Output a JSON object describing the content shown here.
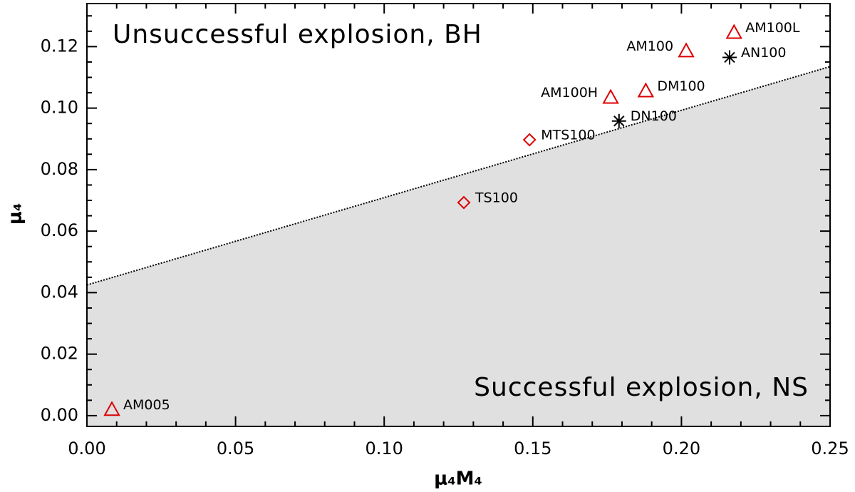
{
  "chart_data": {
    "type": "scatter",
    "xlabel": "μ₄M₄",
    "ylabel": "μ₄",
    "annotations": [
      "Unsuccessful explosion, BH",
      "Successful explosion, NS"
    ],
    "xlim": [
      0,
      0.25
    ],
    "ylim": [
      -0.0035,
      0.134
    ],
    "xticks": [
      {
        "value": 0,
        "label": "0.00"
      },
      {
        "value": 0.05,
        "label": "0.05"
      },
      {
        "value": 0.1,
        "label": "0.10"
      },
      {
        "value": 0.15,
        "label": "0.15"
      },
      {
        "value": 0.2,
        "label": "0.20"
      },
      {
        "value": 0.25,
        "label": "0.25"
      }
    ],
    "yticks": [
      {
        "value": 0,
        "label": "0.00"
      },
      {
        "value": 0.02,
        "label": "0.02"
      },
      {
        "value": 0.04,
        "label": "0.04"
      },
      {
        "value": 0.06,
        "label": "0.06"
      },
      {
        "value": 0.08,
        "label": "0.08"
      },
      {
        "value": 0.1,
        "label": "0.10"
      },
      {
        "value": 0.12,
        "label": "0.12"
      }
    ],
    "minor_xticks": [
      0.01,
      0.02,
      0.03,
      0.04,
      0.06,
      0.07,
      0.08,
      0.09,
      0.11,
      0.12,
      0.13,
      0.14,
      0.16,
      0.17,
      0.18,
      0.19,
      0.21,
      0.22,
      0.23,
      0.24
    ],
    "minor_yticks": [
      0.005,
      0.01,
      0.015,
      0.025,
      0.03,
      0.035,
      0.045,
      0.05,
      0.055,
      0.065,
      0.07,
      0.075,
      0.085,
      0.09,
      0.095,
      0.105,
      0.11,
      0.115,
      0.125,
      0.13
    ],
    "boundary": {
      "x": [
        0,
        0.25
      ],
      "values": [
        0.0425,
        0.1135
      ],
      "color": "#000000",
      "fill": "#e0e0e0"
    },
    "series": [
      {
        "marker": "triangle",
        "color": "#dd0000",
        "labels": [
          "AM005",
          "AM100H",
          "DM100",
          "AM100",
          "AM100L"
        ],
        "x": [
          0.0084,
          0.1762,
          0.188,
          0.2016,
          0.2177
        ],
        "values": [
          0.002,
          0.1035,
          0.1056,
          0.1186,
          0.1246
        ]
      },
      {
        "marker": "diamond",
        "color": "#dd0000",
        "labels": [
          "TS100",
          "MTS100"
        ],
        "x": [
          0.1268,
          0.1489
        ],
        "values": [
          0.0693,
          0.0897
        ]
      },
      {
        "marker": "asterisk",
        "color": "#000000",
        "labels": [
          "DN100",
          "AN100"
        ],
        "x": [
          0.179,
          0.2162
        ],
        "values": [
          0.0958,
          0.1165
        ]
      }
    ]
  }
}
